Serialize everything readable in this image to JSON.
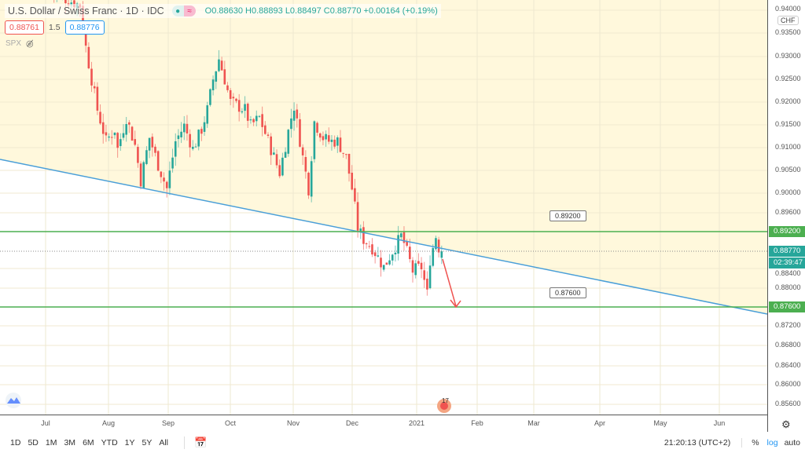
{
  "symbol": {
    "title": "U.S. Dollar / Swiss Franc · 1D · IDC",
    "open": "O0.88630",
    "high": "H0.88893",
    "low": "L0.88497",
    "close": "C0.88770",
    "change": "+0.00164 (+0.19%)"
  },
  "quote": {
    "sell": "0.88761",
    "spread": "1.5",
    "buy": "0.88776"
  },
  "overlay": {
    "name": "SPX",
    "icon": "eye-off-icon"
  },
  "price_axis": {
    "currency": "CHF",
    "ticks": [
      [
        "0.94000",
        0.94
      ],
      [
        "0.93500",
        0.935
      ],
      [
        "0.93000",
        0.93
      ],
      [
        "0.92500",
        0.925
      ],
      [
        "0.92000",
        0.92
      ],
      [
        "0.91500",
        0.915
      ],
      [
        "0.91000",
        0.91
      ],
      [
        "0.90500",
        0.905
      ],
      [
        "0.90000",
        0.9
      ],
      [
        "0.89600",
        0.896
      ],
      [
        "0.89200",
        0.892
      ],
      [
        "0.88770",
        0.8877
      ],
      [
        "0.88400",
        0.884
      ],
      [
        "0.88000",
        0.88
      ],
      [
        "0.87600",
        0.876
      ],
      [
        "0.87200",
        0.872
      ],
      [
        "0.86800",
        0.868
      ],
      [
        "0.86400",
        0.864
      ],
      [
        "0.86000",
        0.86
      ],
      [
        "0.85600",
        0.856
      ]
    ],
    "last_price": "0.88770",
    "countdown": "02:39:47",
    "level_high": "0.89200",
    "level_low": "0.87600"
  },
  "time_axis": [
    "Jul",
    "Aug",
    "Sep",
    "Oct",
    "Nov",
    "Dec",
    "2021",
    "Feb",
    "Mar",
    "Apr",
    "May",
    "Jun"
  ],
  "ranges": [
    "1D",
    "5D",
    "1M",
    "3M",
    "6M",
    "YTD",
    "1Y",
    "5Y",
    "All"
  ],
  "clock": "21:20:13 (UTC+2)",
  "scale": {
    "percent": "%",
    "log": "log",
    "auto": "auto"
  },
  "drawings": {
    "label_high": "0.89200",
    "label_low": "0.87600",
    "event_badge": "17"
  },
  "colors": {
    "up": "#26a69a",
    "down": "#ef5350",
    "trend": "#4a9fd8",
    "level": "#4caf50",
    "fill": "#fff8dc"
  },
  "price_path": [
    [
      0,
      0.944
    ],
    [
      10,
      0.941
    ],
    [
      12,
      0.932
    ],
    [
      14,
      0.925
    ],
    [
      16,
      0.9183
    ],
    [
      19,
      0.9114
    ],
    [
      22,
      0.914
    ],
    [
      23,
      0.9097
    ],
    [
      26,
      0.9166
    ],
    [
      29,
      0.9105
    ],
    [
      31,
      0.9028
    ],
    [
      34,
      0.9122
    ],
    [
      37,
      0.9062
    ],
    [
      40,
      0.901
    ],
    [
      43,
      0.9114
    ],
    [
      46,
      0.9148
    ],
    [
      49,
      0.9097
    ],
    [
      52,
      0.914
    ],
    [
      54,
      0.9183
    ],
    [
      56,
      0.925
    ],
    [
      58,
      0.9295
    ],
    [
      60,
      0.925
    ],
    [
      62,
      0.92
    ],
    [
      67,
      0.9183
    ],
    [
      69,
      0.9148
    ],
    [
      72,
      0.9166
    ],
    [
      76,
      0.9097
    ],
    [
      79,
      0.9045
    ],
    [
      83,
      0.9166
    ],
    [
      84,
      0.9191
    ],
    [
      87,
      0.9079
    ],
    [
      89,
      0.901
    ],
    [
      91,
      0.9157
    ],
    [
      94,
      0.9122
    ],
    [
      96,
      0.9114
    ],
    [
      99,
      0.9114
    ],
    [
      102,
      0.9079
    ],
    [
      104,
      0.901
    ],
    [
      106,
      0.8928
    ],
    [
      108,
      0.8903
    ],
    [
      111,
      0.8885
    ],
    [
      115,
      0.8843
    ],
    [
      118,
      0.8877
    ],
    [
      121,
      0.891
    ],
    [
      122,
      0.8895
    ],
    [
      125,
      0.8835
    ],
    [
      128,
      0.8843
    ],
    [
      130,
      0.8787
    ],
    [
      131,
      0.886
    ],
    [
      133,
      0.891
    ],
    [
      134,
      0.8885
    ],
    [
      135,
      0.8877
    ]
  ]
}
